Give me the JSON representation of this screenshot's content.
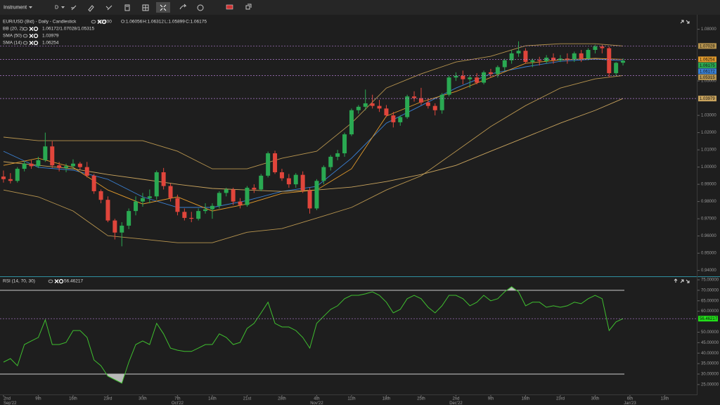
{
  "toolbar": {
    "instrument": "Instrument",
    "period": "D"
  },
  "chart_data": [
    {
      "type": "candlestick",
      "title": "EUR/USD (Bid) - Daily - Candlestick",
      "count": "90/300",
      "readout": [
        "O:1.06056",
        "H:1.06312",
        "L:1.05899",
        "C:1.06175"
      ],
      "up_color": "#2aa952",
      "down_color": "#e0453b",
      "ohlc": [
        [
          0.9945,
          0.998,
          0.991,
          0.993
        ],
        [
          0.993,
          0.9965,
          0.9905,
          0.992
        ],
        [
          0.992,
          1.0,
          0.991,
          0.999
        ],
        [
          0.999,
          1.0035,
          0.9975,
          1.002
        ],
        [
          1.002,
          1.004,
          0.999,
          1.0005
        ],
        [
          1.0005,
          1.006,
          0.9995,
          1.004
        ],
        [
          1.004,
          1.02,
          1.003,
          1.012
        ],
        [
          1.012,
          1.015,
          0.9995,
          1.001
        ],
        [
          1.001,
          1.003,
          0.9975,
          0.9995
        ],
        [
          0.9995,
          1.002,
          0.997,
          1.0005
        ],
        [
          1.0005,
          1.0045,
          0.999,
          1.002
        ],
        [
          1.002,
          1.003,
          0.9985,
          1.0
        ],
        [
          1.0,
          1.003,
          0.994,
          0.995
        ],
        [
          0.995,
          0.996,
          0.9845,
          0.986
        ],
        [
          0.986,
          0.987,
          0.979,
          0.981
        ],
        [
          0.981,
          0.983,
          0.968,
          0.969
        ],
        [
          0.969,
          0.97,
          0.958,
          0.962
        ],
        [
          0.962,
          0.968,
          0.954,
          0.966
        ],
        [
          0.966,
          0.976,
          0.964,
          0.9745
        ],
        [
          0.9745,
          0.983,
          0.972,
          0.98
        ],
        [
          0.98,
          0.985,
          0.977,
          0.982
        ],
        [
          0.982,
          0.987,
          0.979,
          0.983
        ],
        [
          0.983,
          0.998,
          0.981,
          0.997
        ],
        [
          0.997,
          0.9995,
          0.987,
          0.989
        ],
        [
          0.989,
          0.9905,
          0.98,
          0.982
        ],
        [
          0.982,
          0.984,
          0.972,
          0.974
        ],
        [
          0.974,
          0.976,
          0.969,
          0.9705
        ],
        [
          0.9705,
          0.974,
          0.968,
          0.97
        ],
        [
          0.97,
          0.976,
          0.969,
          0.9745
        ],
        [
          0.9745,
          0.979,
          0.973,
          0.9755
        ],
        [
          0.9755,
          0.979,
          0.97,
          0.9775
        ],
        [
          0.9775,
          0.986,
          0.976,
          0.985
        ],
        [
          0.985,
          0.988,
          0.983,
          0.987
        ],
        [
          0.987,
          0.988,
          0.978,
          0.98
        ],
        [
          0.98,
          0.982,
          0.976,
          0.978
        ],
        [
          0.978,
          0.989,
          0.977,
          0.988
        ],
        [
          0.988,
          0.99,
          0.985,
          0.987
        ],
        [
          0.987,
          0.996,
          0.986,
          0.995
        ],
        [
          0.995,
          1.009,
          0.994,
          1.008
        ],
        [
          1.008,
          1.0095,
          0.996,
          0.997
        ],
        [
          0.997,
          0.999,
          0.992,
          0.9935
        ],
        [
          0.9935,
          0.996,
          0.988,
          0.99
        ],
        [
          0.99,
          0.9965,
          0.988,
          0.9955
        ],
        [
          0.9955,
          0.9975,
          0.985,
          0.9865
        ],
        [
          0.9865,
          0.988,
          0.973,
          0.976
        ],
        [
          0.976,
          0.993,
          0.975,
          0.992
        ],
        [
          0.992,
          1.001,
          0.99,
          1.0
        ],
        [
          1.0,
          1.007,
          0.998,
          1.006
        ],
        [
          1.006,
          1.01,
          1.004,
          1.008
        ],
        [
          1.008,
          1.02,
          1.006,
          1.019
        ],
        [
          1.019,
          1.034,
          1.018,
          1.033
        ],
        [
          1.033,
          1.036,
          1.031,
          1.035
        ],
        [
          1.035,
          1.045,
          1.033,
          1.037
        ],
        [
          1.037,
          1.042,
          1.034,
          1.0355
        ],
        [
          1.0355,
          1.039,
          1.032,
          1.034
        ],
        [
          1.034,
          1.036,
          1.029,
          1.03
        ],
        [
          1.03,
          1.032,
          1.023,
          1.026
        ],
        [
          1.026,
          1.03,
          1.024,
          1.029
        ],
        [
          1.029,
          1.042,
          1.028,
          1.041
        ],
        [
          1.041,
          1.044,
          1.038,
          1.04
        ],
        [
          1.04,
          1.046,
          1.036,
          1.0375
        ],
        [
          1.0375,
          1.04,
          1.034,
          1.0355
        ],
        [
          1.0355,
          1.037,
          1.03,
          1.033
        ],
        [
          1.033,
          1.043,
          1.031,
          1.042
        ],
        [
          1.042,
          1.053,
          1.041,
          1.052
        ],
        [
          1.052,
          1.055,
          1.05,
          1.053
        ],
        [
          1.053,
          1.056,
          1.048,
          1.051
        ],
        [
          1.051,
          1.0535,
          1.046,
          1.052
        ],
        [
          1.052,
          1.0545,
          1.048,
          1.049
        ],
        [
          1.049,
          1.056,
          1.048,
          1.055
        ],
        [
          1.055,
          1.057,
          1.052,
          1.054
        ],
        [
          1.054,
          1.059,
          1.052,
          1.058
        ],
        [
          1.058,
          1.063,
          1.056,
          1.062
        ],
        [
          1.062,
          1.068,
          1.06,
          1.066
        ],
        [
          1.066,
          1.073,
          1.064,
          1.0675
        ],
        [
          1.0675,
          1.069,
          1.06,
          1.061
        ],
        [
          1.061,
          1.063,
          1.058,
          1.062
        ],
        [
          1.062,
          1.064,
          1.059,
          1.0615
        ],
        [
          1.0615,
          1.065,
          1.06,
          1.0635
        ],
        [
          1.0635,
          1.066,
          1.06,
          1.062
        ],
        [
          1.062,
          1.065,
          1.061,
          1.063
        ],
        [
          1.063,
          1.066,
          1.06,
          1.0625
        ],
        [
          1.0625,
          1.067,
          1.061,
          1.066
        ],
        [
          1.066,
          1.068,
          1.061,
          1.063
        ],
        [
          1.063,
          1.069,
          1.062,
          1.068
        ],
        [
          1.068,
          1.071,
          1.066,
          1.07
        ],
        [
          1.07,
          1.071,
          1.066,
          1.069
        ],
        [
          1.069,
          1.07,
          1.052,
          1.0545
        ],
        [
          1.0545,
          1.061,
          1.053,
          1.0605
        ],
        [
          1.06056,
          1.06312,
          1.05899,
          1.06175
        ]
      ],
      "xlim": [
        -0.5,
        99.5
      ],
      "xticks": [
        {
          "value": 0,
          "label": "2nd",
          "month": "Sep'22"
        },
        {
          "value": 5,
          "label": "9th"
        },
        {
          "value": 10,
          "label": "16th"
        },
        {
          "value": 15,
          "label": "23rd"
        },
        {
          "value": 20,
          "label": "30th"
        },
        {
          "value": 25,
          "label": "7th",
          "month": "Oct'22"
        },
        {
          "value": 30,
          "label": "14th"
        },
        {
          "value": 35,
          "label": "21st"
        },
        {
          "value": 40,
          "label": "28th"
        },
        {
          "value": 45,
          "label": "4th",
          "month": "Nov'22"
        },
        {
          "value": 50,
          "label": "11th"
        },
        {
          "value": 55,
          "label": "18th"
        },
        {
          "value": 60,
          "label": "25th"
        },
        {
          "value": 65,
          "label": "2nd",
          "month": "Dec'22"
        },
        {
          "value": 70,
          "label": "9th"
        },
        {
          "value": 75,
          "label": "16th"
        },
        {
          "value": 80,
          "label": "23rd"
        },
        {
          "value": 85,
          "label": "30th"
        },
        {
          "value": 90,
          "label": "6th",
          "month": "Jan'23"
        },
        {
          "value": 95,
          "label": "13th"
        }
      ],
      "ylim": [
        0.937,
        1.088
      ],
      "yticks": [
        {
          "value": 0.94,
          "label": "0.94000"
        },
        {
          "value": 0.95,
          "label": "0.95000"
        },
        {
          "value": 0.96,
          "label": "0.96000"
        },
        {
          "value": 0.97,
          "label": "0.97000"
        },
        {
          "value": 0.98,
          "label": "0.98000"
        },
        {
          "value": 0.99,
          "label": "0.99000"
        },
        {
          "value": 1.0,
          "label": "1.00000"
        },
        {
          "value": 1.01,
          "label": "1.01000"
        },
        {
          "value": 1.02,
          "label": "1.02000"
        },
        {
          "value": 1.03,
          "label": "1.03000"
        },
        {
          "value": 1.05,
          "label": "1.05000"
        },
        {
          "value": 1.08,
          "label": "1.08000"
        }
      ],
      "indicators": {
        "x": [
          0,
          5,
          10,
          15,
          20,
          25,
          30,
          35,
          40,
          45,
          50,
          55,
          60,
          65,
          70,
          75,
          80,
          85,
          89
        ],
        "series": [
          {
            "name": "BB (20, 2)",
            "readout": "1.06172/1.07028/1.05315",
            "color": "#b8954f",
            "middle_color": "#3b82d6",
            "upper": [
              1.0174,
              1.0153,
              1.0153,
              1.0153,
              1.0153,
              1.0092,
              0.999,
              0.999,
              1.0051,
              1.0092,
              1.0255,
              1.0459,
              1.0541,
              1.061,
              1.0643,
              1.0704,
              1.0716,
              1.0716,
              1.07028
            ],
            "middle": [
              1.0092,
              0.9998,
              0.9982,
              0.9929,
              0.9827,
              0.9766,
              0.9766,
              0.9806,
              0.9859,
              0.9888,
              1.0051,
              1.0255,
              1.0357,
              1.0459,
              1.0541,
              1.0582,
              1.0614,
              1.0627,
              1.06172
            ],
            "lower": [
              0.9867,
              0.9827,
              0.9745,
              0.9602,
              0.9582,
              0.9561,
              0.9561,
              0.9622,
              0.9643,
              0.9704,
              0.9766,
              0.9867,
              0.9949,
              1.0092,
              1.0235,
              1.0357,
              1.0459,
              1.0512,
              1.05315
            ]
          },
          {
            "name": "SMA (50)",
            "color": "#c9a45e",
            "values": [
              1.0031,
              1.001,
              0.999,
              0.9957,
              0.9929,
              0.99,
              0.9876,
              0.9867,
              0.9859,
              0.9867,
              0.9884,
              0.9916,
              0.9957,
              1.001,
              1.0092,
              1.0173,
              1.0255,
              1.0329,
              1.03979
            ]
          },
          {
            "name": "SMA (14)",
            "color": "#e19a2c",
            "values": [
              1.001,
              1.0051,
              0.9998,
              0.9867,
              0.9786,
              0.9827,
              0.9745,
              0.9786,
              0.9847,
              0.9867,
              0.999,
              1.0296,
              1.0378,
              1.0439,
              1.052,
              1.0602,
              1.0622,
              1.0631,
              1.06254
            ]
          }
        ]
      }
    },
    {
      "type": "line",
      "title": "RSI (14, 70, 30)",
      "color": "#3fbf2f",
      "values": [
        35.7,
        37.4,
        34.0,
        44.1,
        45.8,
        47.5,
        55.9,
        44.1,
        44.1,
        45.1,
        50.8,
        50.8,
        47.5,
        36.7,
        34.0,
        29.0,
        27.3,
        25.6,
        35.7,
        44.1,
        45.8,
        44.1,
        54.2,
        49.2,
        42.4,
        41.4,
        40.8,
        40.8,
        42.4,
        44.1,
        44.1,
        49.2,
        47.5,
        44.1,
        45.1,
        51.8,
        54.2,
        59.2,
        64.3,
        54.2,
        52.5,
        52.5,
        50.8,
        47.5,
        42.4,
        54.2,
        57.6,
        60.9,
        62.6,
        66.0,
        67.6,
        67.6,
        68.3,
        69.3,
        67.6,
        64.3,
        59.2,
        60.9,
        66.0,
        67.6,
        66.0,
        61.9,
        59.2,
        62.6,
        67.6,
        67.6,
        66.0,
        62.6,
        64.3,
        67.6,
        65.0,
        66.0,
        69.3,
        71.7,
        69.3,
        62.6,
        64.3,
        64.3,
        61.9,
        62.6,
        61.9,
        62.6,
        64.3,
        63.6,
        66.0,
        67.6,
        66.0,
        50.8,
        54.9,
        56.46217
      ],
      "levels": [
        70,
        30
      ],
      "ylim": [
        20.6,
        76
      ],
      "yticks": [
        {
          "value": 25,
          "label": "25.00000"
        },
        {
          "value": 30,
          "label": "30.00000"
        },
        {
          "value": 35,
          "label": "35.00000"
        },
        {
          "value": 40,
          "label": "40.00000"
        },
        {
          "value": 45,
          "label": "45.00000"
        },
        {
          "value": 50,
          "label": "50.00000"
        },
        {
          "value": 60,
          "label": "60.00000"
        },
        {
          "value": 65,
          "label": "65.00000"
        },
        {
          "value": 70,
          "label": "70.00000"
        },
        {
          "value": 75,
          "label": "75.00000"
        }
      ]
    }
  ]
}
